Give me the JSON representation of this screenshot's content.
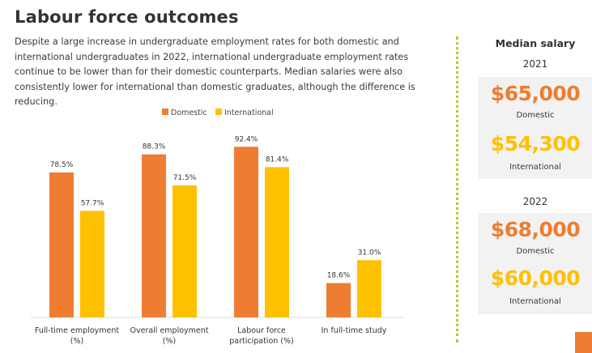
{
  "page": {
    "title": "Labour force outcomes",
    "intro": "Despite a large increase in undergraduate employment rates for both domestic and international undergraduates in 2022, international undergraduate employment rates continue to be lower than for their domestic counterparts. Median salaries were also consistently lower for international than domestic graduates, although the difference is reducing."
  },
  "chart_data": {
    "type": "bar",
    "title": "",
    "xlabel": "",
    "ylabel": "",
    "categories": [
      [
        "Full-time employment",
        "(%)"
      ],
      [
        "Overall employment",
        "(%)"
      ],
      [
        "Labour force",
        "participation (%)"
      ],
      [
        "In full-time study"
      ]
    ],
    "series": [
      {
        "name": "Domestic",
        "color": "#ee7d31",
        "values": [
          78.5,
          88.3,
          92.4,
          18.6
        ]
      },
      {
        "name": "International",
        "color": "#ffc000",
        "values": [
          57.7,
          71.5,
          81.4,
          31.0
        ]
      }
    ],
    "data_labels": [
      [
        "78.5%",
        "88.3%",
        "92.4%",
        "18.6%"
      ],
      [
        "57.7%",
        "71.5%",
        "81.4%",
        "31.0%"
      ]
    ],
    "ylim": [
      0,
      100
    ],
    "grid": false,
    "legend_position": "top-center"
  },
  "salary": {
    "title": "Median salary",
    "years": [
      {
        "year": "2021",
        "domestic": {
          "amount": "$65,000",
          "label": "Domestic"
        },
        "international": {
          "amount": "$54,300",
          "label": "International"
        }
      },
      {
        "year": "2022",
        "domestic": {
          "amount": "$68,000",
          "label": "Domestic"
        },
        "international": {
          "amount": "$60,000",
          "label": "International"
        }
      }
    ]
  },
  "colors": {
    "domestic": "#ee7d31",
    "international": "#ffc000",
    "divider": "#a6d22a",
    "panel": "#f2f2f2"
  }
}
